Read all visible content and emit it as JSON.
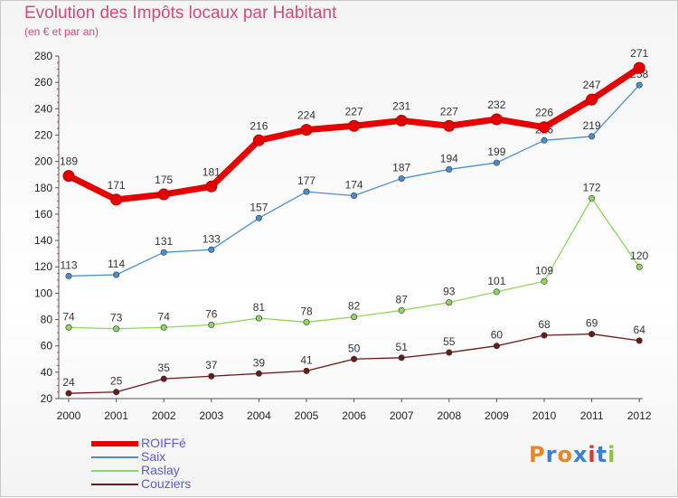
{
  "title": "Evolution des Impôts locaux par Habitant",
  "subtitle": "(en € et par an)",
  "logo": {
    "text": "Proxiti",
    "colors": [
      "#e8862a",
      "#3b7fd6",
      "#e8862a",
      "#3b7fd6",
      "#d9362b",
      "#3b7fd6",
      "#8cc63f"
    ]
  },
  "chart_data": {
    "type": "line",
    "title": "Evolution des Impôts locaux par Habitant",
    "subtitle": "(en € et par an)",
    "xlabel": "",
    "ylabel": "",
    "x": [
      "2000",
      "2001",
      "2002",
      "2003",
      "2004",
      "2005",
      "2006",
      "2007",
      "2008",
      "2009",
      "2010",
      "2011",
      "2012"
    ],
    "ylim": [
      20,
      280
    ],
    "yticks": [
      20,
      40,
      60,
      80,
      100,
      120,
      140,
      160,
      180,
      200,
      220,
      240,
      260,
      280
    ],
    "grid": false,
    "legend_position": "bottom-left",
    "series": [
      {
        "name": "ROIFFé",
        "color": "#e60000",
        "values": [
          189,
          171,
          175,
          181,
          216,
          224,
          227,
          231,
          227,
          232,
          226,
          247,
          271
        ]
      },
      {
        "name": "Saix",
        "color": "#4a8ed0",
        "values": [
          113,
          114,
          131,
          133,
          157,
          177,
          174,
          187,
          194,
          199,
          216,
          219,
          258
        ]
      },
      {
        "name": "Raslay",
        "color": "#8fd65c",
        "values": [
          74,
          73,
          74,
          76,
          81,
          78,
          82,
          87,
          93,
          101,
          109,
          172,
          120
        ]
      },
      {
        "name": "Couziers",
        "color": "#6b1a1a",
        "values": [
          24,
          25,
          35,
          37,
          39,
          41,
          50,
          51,
          55,
          60,
          68,
          69,
          64
        ]
      }
    ]
  }
}
